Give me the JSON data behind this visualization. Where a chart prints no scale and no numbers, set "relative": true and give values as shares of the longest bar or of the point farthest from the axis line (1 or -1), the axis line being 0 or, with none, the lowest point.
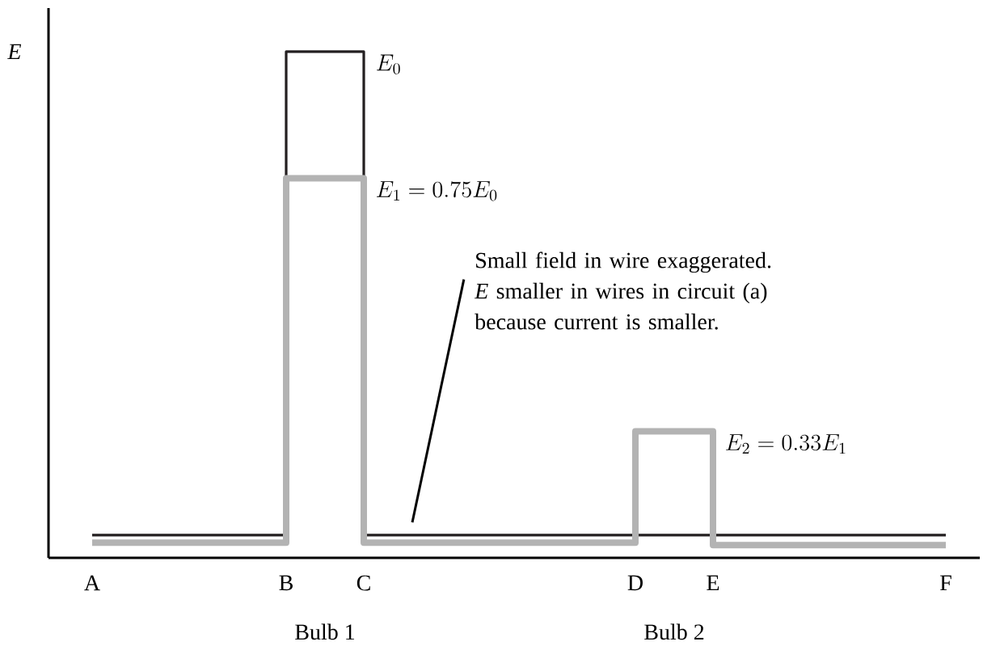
{
  "chart_data": {
    "type": "line",
    "relative": true,
    "categories": [
      null,
      "A",
      null,
      null,
      null,
      null,
      "B",
      null,
      "C",
      null,
      null,
      null,
      null,
      null,
      null,
      "D",
      null,
      "E",
      null,
      null,
      null,
      null,
      null,
      "F"
    ],
    "series": [
      {
        "color": "#231f20",
        "x": [
          "A",
          "B",
          "B",
          "C",
          "C",
          "F"
        ],
        "values": [
          0.045,
          0.045,
          1,
          1,
          0.045,
          0.045
        ]
      },
      {
        "color": "#b3b3b3",
        "x": [
          "A",
          "B",
          "B",
          "C",
          "C",
          "D",
          "D",
          "E",
          "E",
          "F"
        ],
        "values": [
          0.03,
          0.03,
          0.75,
          0.75,
          0.03,
          0.03,
          0.25,
          0.25,
          0.025,
          0.025
        ]
      }
    ],
    "annotations": [
      "E",
      "E_{0}",
      "E_{1} = 0.75E_{0}",
      "E_{2} = 0.33E_{1}",
      "Small field in wire exaggerated. *E* smaller in wires in circuit (a) because current is smaller.",
      "Bulb 1",
      "Bulb 2"
    ]
  }
}
